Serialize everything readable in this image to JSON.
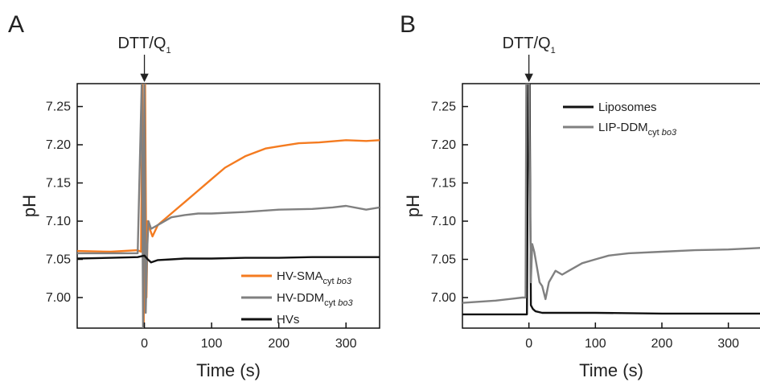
{
  "chart_data": [
    {
      "type": "line",
      "panel": "A",
      "annotation": {
        "text": "DTT/Q",
        "subscript": "1",
        "x": 0
      },
      "xlabel": "Time (s)",
      "ylabel": "pH",
      "xlim": [
        -100,
        350
      ],
      "ylim": [
        6.96,
        7.28
      ],
      "xticks": [
        0,
        100,
        200,
        300
      ],
      "xtick_labels": [
        "0",
        "100",
        "200",
        "300"
      ],
      "yticks": [
        7.0,
        7.05,
        7.1,
        7.15,
        7.2,
        7.25
      ],
      "ytick_labels": [
        "7.00",
        "7.05",
        "7.10",
        "7.15",
        "7.20",
        "7.25"
      ],
      "legend_position": "bottom-right",
      "series": [
        {
          "name": "HV-SMA",
          "name_sub": "cyt",
          "name_sub_italic": "bo3",
          "color": "#f47b20",
          "x": [
            -100,
            -50,
            -10,
            -5,
            -3,
            -1,
            1,
            3,
            5,
            8,
            12,
            20,
            40,
            60,
            80,
            100,
            120,
            150,
            180,
            200,
            230,
            260,
            300,
            330,
            350
          ],
          "y": [
            7.061,
            7.06,
            7.062,
            7.06,
            7.28,
            6.96,
            7.28,
            7.0,
            7.1,
            7.09,
            7.08,
            7.095,
            7.11,
            7.125,
            7.14,
            7.155,
            7.17,
            7.185,
            7.195,
            7.198,
            7.202,
            7.203,
            7.206,
            7.205,
            7.206
          ]
        },
        {
          "name": "HV-DDM",
          "name_sub": "cyt",
          "name_sub_italic": "bo3",
          "color": "#808080",
          "x": [
            -100,
            -50,
            -10,
            -4,
            -2,
            0,
            2,
            4,
            6,
            10,
            20,
            40,
            60,
            80,
            100,
            150,
            200,
            250,
            280,
            300,
            330,
            350
          ],
          "y": [
            7.058,
            7.058,
            7.058,
            7.28,
            6.96,
            7.28,
            6.98,
            7.06,
            7.1,
            7.09,
            7.095,
            7.105,
            7.108,
            7.11,
            7.11,
            7.112,
            7.115,
            7.116,
            7.118,
            7.12,
            7.115,
            7.118
          ]
        },
        {
          "name": "HVs",
          "name_sub": "",
          "name_sub_italic": "",
          "color": "#111111",
          "x": [
            -100,
            -50,
            -10,
            0,
            5,
            10,
            20,
            40,
            60,
            100,
            150,
            200,
            250,
            300,
            350
          ],
          "y": [
            7.051,
            7.052,
            7.053,
            7.055,
            7.05,
            7.046,
            7.049,
            7.05,
            7.051,
            7.051,
            7.052,
            7.052,
            7.053,
            7.053,
            7.053
          ]
        }
      ]
    },
    {
      "type": "line",
      "panel": "B",
      "annotation": {
        "text": "DTT/Q",
        "subscript": "1",
        "x": 0
      },
      "xlabel": "Time (s)",
      "ylabel": "pH",
      "xlim": [
        -100,
        350
      ],
      "ylim": [
        6.96,
        7.28
      ],
      "xticks": [
        0,
        100,
        200,
        300
      ],
      "xtick_labels": [
        "0",
        "100",
        "200",
        "300"
      ],
      "yticks": [
        7.0,
        7.05,
        7.1,
        7.15,
        7.2,
        7.25
      ],
      "ytick_labels": [
        "7.00",
        "7.05",
        "7.10",
        "7.15",
        "7.20",
        "7.25"
      ],
      "legend_position": "top-left",
      "series": [
        {
          "name": "Liposomes",
          "name_sub": "",
          "name_sub_italic": "",
          "color": "#111111",
          "x": [
            -100,
            -50,
            -10,
            -3,
            -1,
            1,
            3,
            6,
            10,
            20,
            50,
            100,
            200,
            300,
            350
          ],
          "y": [
            6.978,
            6.978,
            6.978,
            6.978,
            7.28,
            7.28,
            6.99,
            6.985,
            6.982,
            6.98,
            6.98,
            6.98,
            6.979,
            6.979,
            6.979
          ]
        },
        {
          "name": "LIP-DDM",
          "name_sub": "cyt",
          "name_sub_italic": "bo3",
          "color": "#808080",
          "x": [
            -100,
            -50,
            -10,
            -5,
            -4,
            -2,
            0,
            3,
            5,
            8,
            12,
            16,
            20,
            25,
            30,
            40,
            50,
            60,
            80,
            100,
            120,
            150,
            200,
            250,
            300,
            350
          ],
          "y": [
            6.993,
            6.996,
            7.0,
            7.0,
            7.28,
            7.28,
            7.28,
            7.02,
            7.07,
            7.06,
            7.04,
            7.02,
            7.015,
            6.998,
            7.02,
            7.035,
            7.03,
            7.035,
            7.045,
            7.05,
            7.055,
            7.058,
            7.06,
            7.062,
            7.063,
            7.065
          ]
        }
      ]
    }
  ]
}
